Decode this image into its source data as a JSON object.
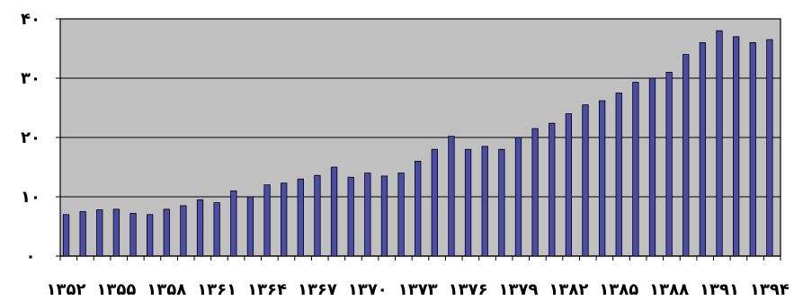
{
  "chart_data": {
    "type": "bar",
    "title": "",
    "xlabel": "",
    "ylabel": "",
    "ylim": [
      0,
      40
    ],
    "yticks": [
      {
        "value": 0,
        "label": "۰"
      },
      {
        "value": 10,
        "label": "۱۰"
      },
      {
        "value": 20,
        "label": "۲۰"
      },
      {
        "value": 30,
        "label": "۳۰"
      },
      {
        "value": 40,
        "label": "۴۰"
      }
    ],
    "grid": true,
    "legend": "none",
    "plot_background": "#c0c0c0",
    "bar_color": "#4b4ba8",
    "bar_edge_color": "#000000",
    "categories": [
      "۱۳۵۲",
      "۱۳۵۳",
      "۱۳۵۴",
      "۱۳۵۵",
      "۱۳۵۶",
      "۱۳۵۷",
      "۱۳۵۸",
      "۱۳۵۹",
      "۱۳۶۰",
      "۱۳۶۱",
      "۱۳۶۲",
      "۱۳۶۳",
      "۱۳۶۴",
      "۱۳۶۵",
      "۱۳۶۶",
      "۱۳۶۷",
      "۱۳۶۸",
      "۱۳۶۹",
      "۱۳۷۰",
      "۱۳۷۱",
      "۱۳۷۲",
      "۱۳۷۳",
      "۱۳۷۴",
      "۱۳۷۵",
      "۱۳۷۶",
      "۱۳۷۷",
      "۱۳۷۸",
      "۱۳۷۹",
      "۱۳۸۰",
      "۱۳۸۱",
      "۱۳۸۲",
      "۱۳۸۳",
      "۱۳۸۴",
      "۱۳۸۵",
      "۱۳۸۶",
      "۱۳۸۷",
      "۱۳۸۸",
      "۱۳۸۹",
      "۱۳۹۰",
      "۱۳۹۱",
      "۱۳۹۲",
      "۱۳۹۳",
      "۱۳۹۴"
    ],
    "labeled_categories": [
      "۱۳۵۲",
      "۱۳۵۵",
      "۱۳۵۸",
      "۱۳۶۱",
      "۱۳۶۴",
      "۱۳۶۷",
      "۱۳۷۰",
      "۱۳۷۳",
      "۱۳۷۶",
      "۱۳۷۹",
      "۱۳۸۲",
      "۱۳۸۵",
      "۱۳۸۸",
      "۱۳۹۱",
      "۱۳۹۴"
    ],
    "values": [
      7.0,
      7.5,
      7.8,
      7.9,
      7.2,
      7.0,
      7.9,
      8.5,
      9.5,
      9.0,
      11.0,
      10.0,
      12.0,
      12.3,
      13.0,
      13.6,
      15.0,
      13.3,
      14.0,
      13.5,
      14.0,
      16.0,
      18.0,
      20.2,
      18.0,
      18.5,
      18.0,
      20.0,
      21.5,
      22.4,
      24.0,
      25.5,
      26.2,
      27.5,
      29.3,
      30.0,
      31.0,
      34.0,
      36.0,
      38.0,
      37.0,
      36.0,
      36.5
    ]
  }
}
